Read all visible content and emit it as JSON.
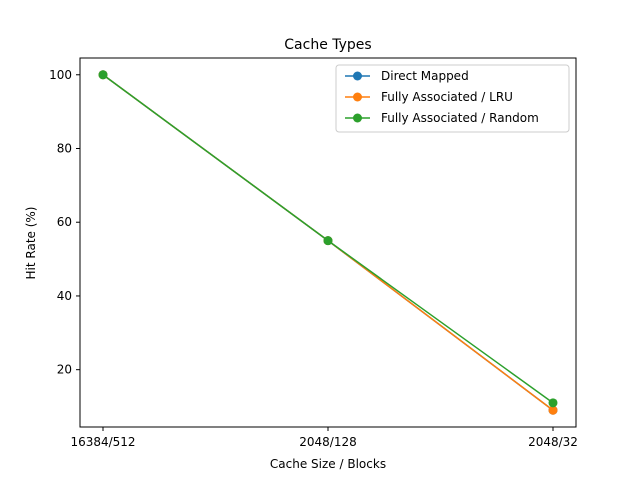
{
  "chart_data": {
    "type": "line",
    "title": "Cache Types",
    "xlabel": "Cache Size / Blocks",
    "ylabel": "Hit Rate (%)",
    "categories": [
      "16384/512",
      "2048/128",
      "2048/32"
    ],
    "yticks": [
      20,
      40,
      60,
      80,
      100
    ],
    "ylim": [
      4.45,
      104.55
    ],
    "legend_position": "top-right",
    "grid": false,
    "series": [
      {
        "name": "Direct Mapped",
        "color": "#1f77b4",
        "values": [
          100,
          55,
          9
        ]
      },
      {
        "name": "Fully Associated / LRU",
        "color": "#ff7f0e",
        "values": [
          100,
          55,
          9
        ]
      },
      {
        "name": "Fully Associated / Random",
        "color": "#2ca02c",
        "values": [
          100,
          55,
          11
        ]
      }
    ]
  }
}
